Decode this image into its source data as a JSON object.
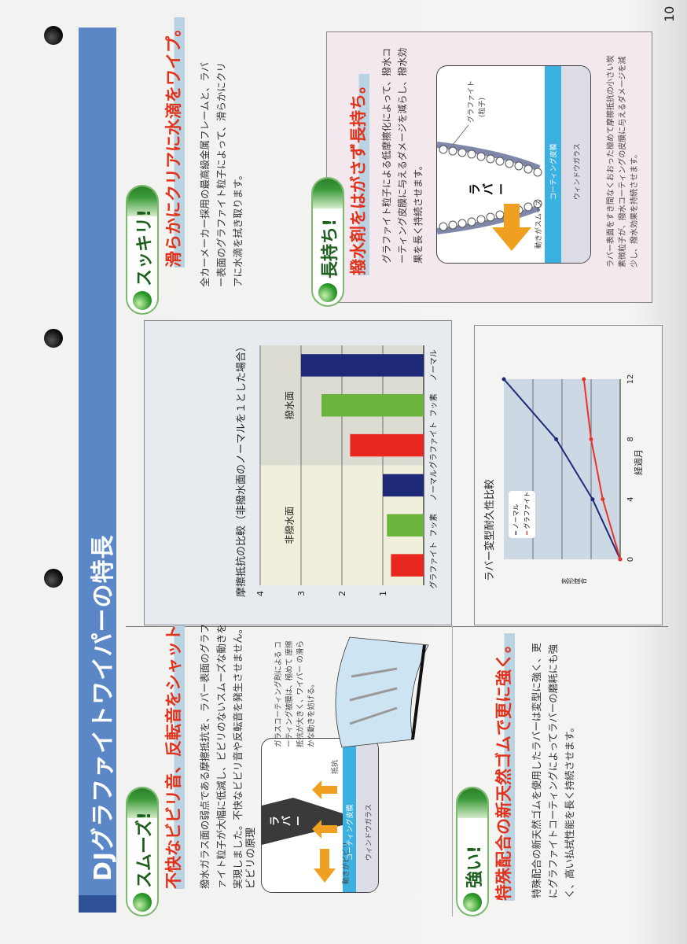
{
  "page_number": "10",
  "title": "DJグラファイトワイパーの特長",
  "colors": {
    "title_bar": "#5b87c7",
    "headline": "#e2321c",
    "badge_green": "#2d9a2a",
    "coating_blue": "#3cb0e0",
    "arrow_orange": "#f0a020"
  },
  "sections": {
    "smooth": {
      "badge": "スムーズ!",
      "headline": "不快なビビリ音、反転音をシャットアウト。",
      "body": "撥水ガラス面の弱点である摩擦抵抗を、ラバー表面のグラファイト粒子が大幅に低減し、ビビリのないスムーズな動きを実現しました。不快なビビリ音や反転音を発生させません。",
      "diagram_title": "ビビリの原理",
      "diagram": {
        "rubber": "ラバー",
        "motion": "動きがビビリ",
        "resistance": "抵抗",
        "coating": "コーティング皮膜",
        "glass": "ウィンドウガラス"
      },
      "callout": "ガラスコーティング剤による コーティング被膜は、極めて 摩擦抵抗が大きく、ワイパー の滑らかな動きを妨げる。"
    },
    "clear": {
      "badge": "スッキリ!",
      "headline": "滑らかにクリアに水滴をワイプ。",
      "body": "全カーメーカー採用の最高級金属フレームと、ラバー表面のグラファイト粒子によって、滑らかにクリアに水滴を拭き取ります。"
    },
    "long": {
      "badge": "長持ち!",
      "headline": "撥水剤をはがさず長持ち。",
      "body": "グラファイト粒子による低摩擦化によって、撥水コーティング皮膜に与えるダメージを減らし、撥水効果を長く持続させます。",
      "diagram": {
        "graphite": "グラファイト",
        "particle": "(粒子)",
        "rubber": "ラバー",
        "motion": "動きがスムーズ",
        "coating": "コーティング皮膜",
        "glass": "ウィンドウガラス"
      },
      "caption": "ラバー表面をすき間なくおおった極めて摩擦抵抗の小さい炭素微粒子が、撥水コーティングの皮膜に与えるダメージを減少し、撥水効果を持続させます。"
    },
    "strong": {
      "badge": "強い!",
      "headline": "特殊配合の新天然ゴムで更に強く。",
      "body": "特殊配合の新天然ゴムを使用したラバーは変型に強く、更にグラファイトコーティングによってラバーの磨耗にも強く、高い払拭性能を長く持続させます。"
    }
  },
  "chart_data": [
    {
      "type": "bar",
      "title": "摩擦抵抗の比較（非撥水面のノーマルを１とした場合）",
      "categories": [
        "グラファイト",
        "フッ素",
        "ノーマル",
        "グラファイト",
        "フッ素",
        "ノーマル"
      ],
      "groups": [
        {
          "label": "非撥水面",
          "indices": [
            0,
            1,
            2
          ]
        },
        {
          "label": "撥水面",
          "indices": [
            3,
            4,
            5
          ]
        }
      ],
      "values": [
        0.8,
        0.9,
        1.0,
        1.8,
        2.5,
        3.0
      ],
      "bar_colors": [
        "#e8281e",
        "#6cb43c",
        "#1e2a78",
        "#e8281e",
        "#6cb43c",
        "#1e2a78"
      ],
      "yticks": [
        "1",
        "2",
        "3",
        "4"
      ],
      "ylim": [
        0,
        4
      ],
      "grid": true
    },
    {
      "type": "line",
      "title": "ラバー変型耐久性比較",
      "xlabel": "経週月",
      "ylabel": "変形度合",
      "x": [
        0,
        4,
        8,
        12
      ],
      "xticks": [
        "0",
        "4",
        "8",
        "12"
      ],
      "series": [
        {
          "name": "ノーマル",
          "color": "#1e2a78",
          "values": [
            0,
            0.95,
            2.2,
            4.0
          ]
        },
        {
          "name": "グラファイト",
          "color": "#e8322a",
          "values": [
            0,
            0.6,
            1.0,
            1.25
          ]
        }
      ],
      "ylim": [
        0,
        4
      ],
      "grid": true,
      "legend": "top-left"
    }
  ]
}
